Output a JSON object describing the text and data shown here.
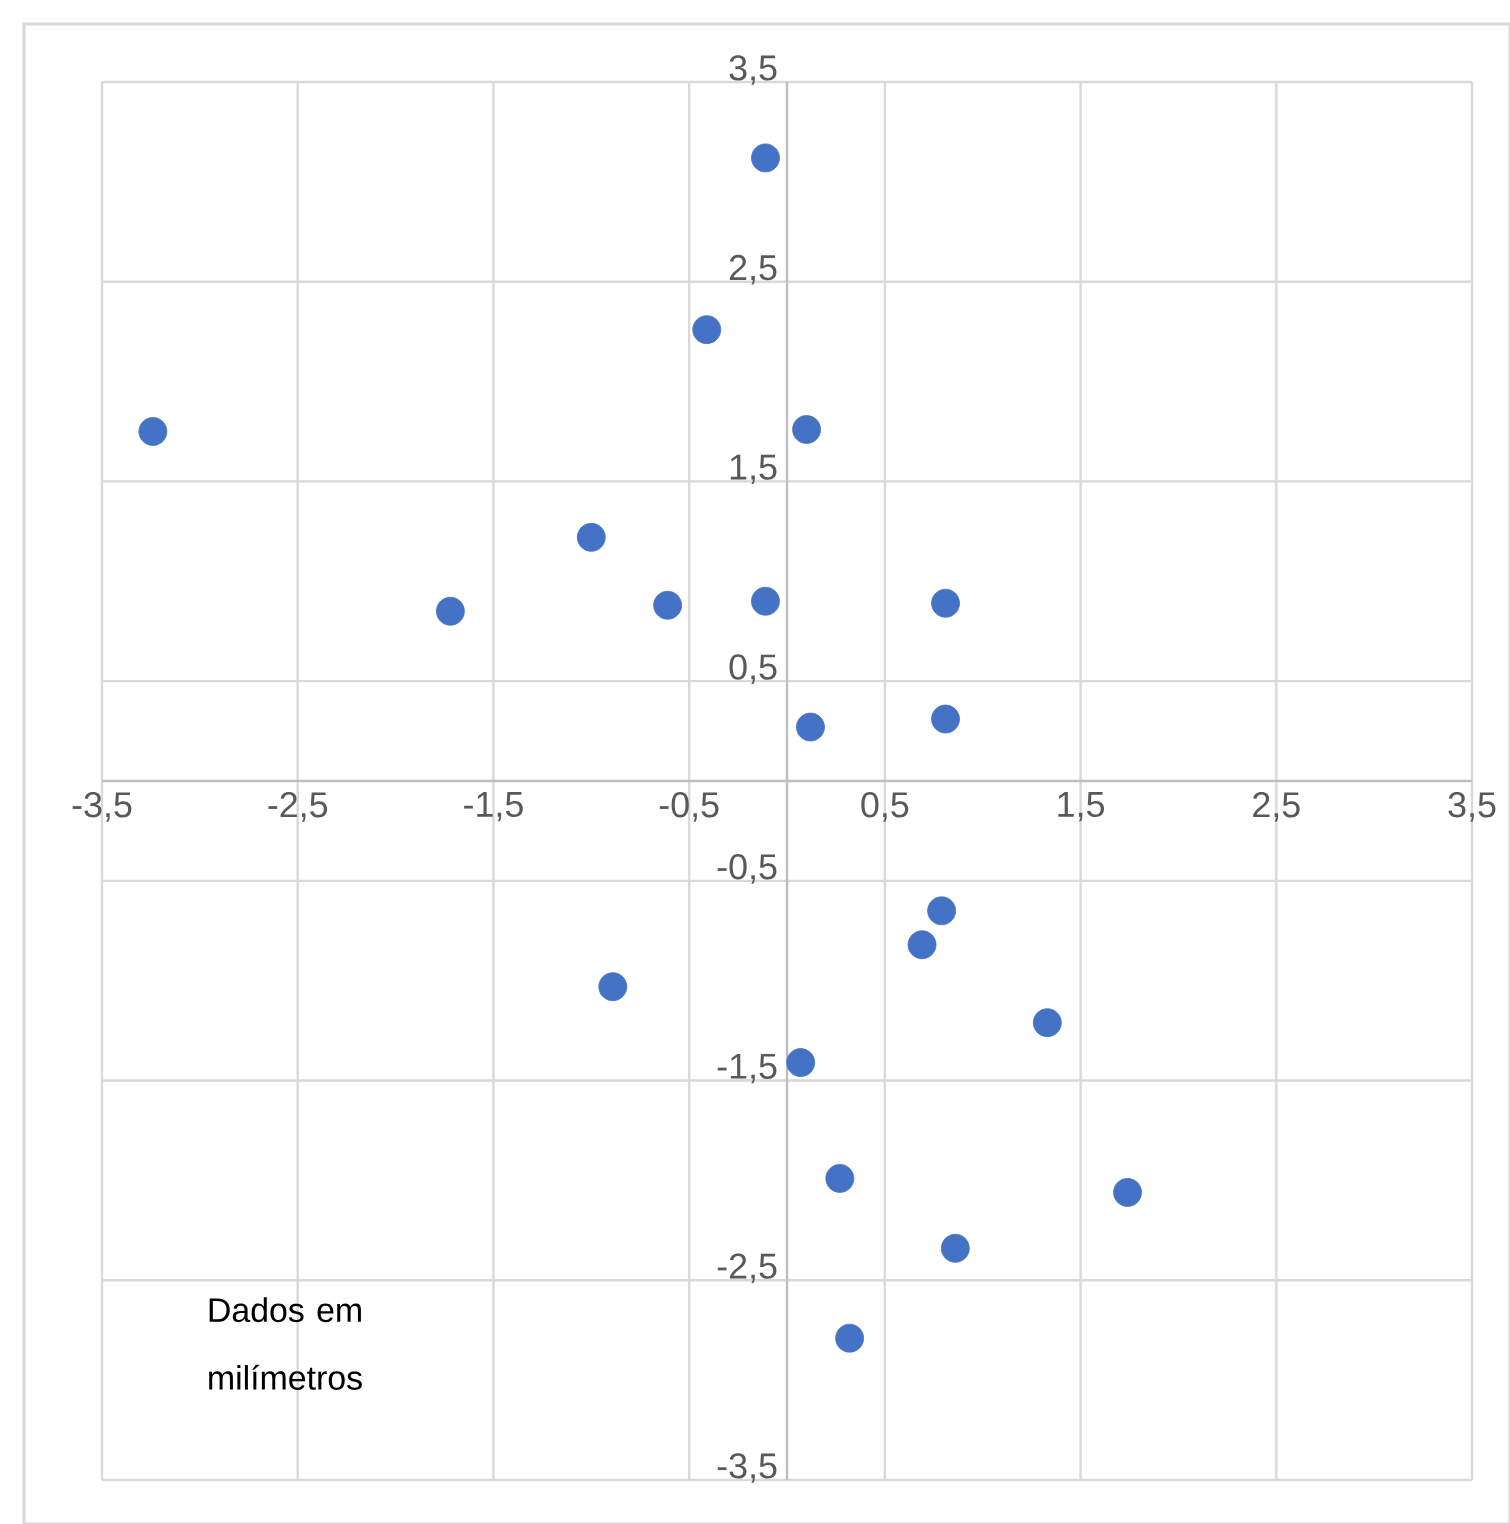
{
  "chart_data": {
    "type": "scatter",
    "color": "#4472c4",
    "marker": "circle",
    "grid": true,
    "x": [
      -3.24,
      -0.11,
      -0.41,
      0.1,
      -1.0,
      -1.72,
      -0.61,
      -0.11,
      0.81,
      0.12,
      0.81,
      0.79,
      0.69,
      -0.89,
      1.33,
      0.07,
      0.27,
      1.74,
      0.86,
      0.32
    ],
    "values": [
      1.75,
      3.12,
      2.26,
      1.76,
      1.22,
      0.85,
      0.88,
      0.9,
      0.89,
      0.27,
      0.31,
      -0.65,
      -0.82,
      -1.03,
      -1.21,
      -1.41,
      -1.99,
      -2.06,
      -2.34,
      -2.79
    ],
    "xlim": [
      -3.5,
      3.5
    ],
    "ylim": [
      -3.5,
      3.5
    ],
    "xticks": [
      {
        "value": -3.5,
        "label": "-3,5"
      },
      {
        "value": -2.5,
        "label": "-2,5"
      },
      {
        "value": -1.5,
        "label": "-1,5"
      },
      {
        "value": -0.5,
        "label": "-0,5"
      },
      {
        "value": 0.5,
        "label": "0,5"
      },
      {
        "value": 1.5,
        "label": "1,5"
      },
      {
        "value": 2.5,
        "label": "2,5"
      },
      {
        "value": 3.5,
        "label": "3,5"
      }
    ],
    "yticks": [
      {
        "value": -3.5,
        "label": "-3,5"
      },
      {
        "value": -2.5,
        "label": "-2,5"
      },
      {
        "value": -1.5,
        "label": "-1,5"
      },
      {
        "value": -0.5,
        "label": "-0,5"
      },
      {
        "value": 0.5,
        "label": "0,5"
      },
      {
        "value": 1.5,
        "label": "1,5"
      },
      {
        "value": 2.5,
        "label": "2,5"
      },
      {
        "value": 3.5,
        "label": "3,5"
      }
    ],
    "annotations": [
      "Dados em milímetros"
    ]
  }
}
